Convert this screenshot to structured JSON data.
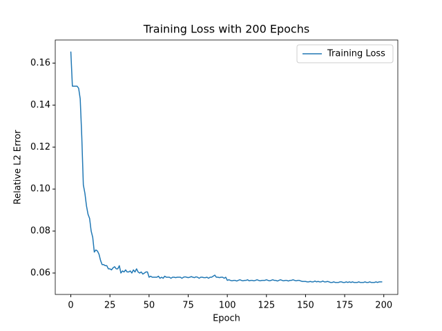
{
  "chart_data": {
    "type": "line",
    "title": "Training Loss with 200 Epochs",
    "x_label": "Epoch",
    "y_label": "Relative L2 Error",
    "x": [
      0,
      1,
      2,
      3,
      4,
      5,
      6,
      7,
      8,
      9,
      10,
      11,
      12,
      13,
      14,
      15,
      16,
      17,
      18,
      19,
      20,
      21,
      22,
      23,
      24,
      25,
      26,
      27,
      28,
      29,
      30,
      31,
      32,
      33,
      34,
      35,
      36,
      37,
      38,
      39,
      40,
      41,
      42,
      43,
      44,
      45,
      46,
      47,
      48,
      49,
      50,
      51,
      52,
      53,
      54,
      55,
      56,
      57,
      58,
      59,
      60,
      61,
      62,
      63,
      64,
      65,
      66,
      67,
      68,
      69,
      70,
      71,
      72,
      73,
      74,
      75,
      76,
      77,
      78,
      79,
      80,
      81,
      82,
      83,
      84,
      85,
      86,
      87,
      88,
      89,
      90,
      91,
      92,
      93,
      94,
      95,
      96,
      97,
      98,
      99,
      100,
      101,
      102,
      103,
      104,
      105,
      106,
      107,
      108,
      109,
      110,
      111,
      112,
      113,
      114,
      115,
      116,
      117,
      118,
      119,
      120,
      121,
      122,
      123,
      124,
      125,
      126,
      127,
      128,
      129,
      130,
      131,
      132,
      133,
      134,
      135,
      136,
      137,
      138,
      139,
      140,
      141,
      142,
      143,
      144,
      145,
      146,
      147,
      148,
      149,
      150,
      151,
      152,
      153,
      154,
      155,
      156,
      157,
      158,
      159,
      160,
      161,
      162,
      163,
      164,
      165,
      166,
      167,
      168,
      169,
      170,
      171,
      172,
      173,
      174,
      175,
      176,
      177,
      178,
      179,
      180,
      181,
      182,
      183,
      184,
      185,
      186,
      187,
      188,
      189,
      190,
      191,
      192,
      193,
      194,
      195,
      196,
      197,
      198,
      199
    ],
    "series": [
      {
        "name": "Training Loss",
        "color": "#1f77b4",
        "values": [
          0.1655,
          0.149,
          0.149,
          0.149,
          0.149,
          0.148,
          0.143,
          0.125,
          0.102,
          0.098,
          0.092,
          0.088,
          0.086,
          0.08,
          0.077,
          0.07,
          0.071,
          0.0705,
          0.069,
          0.066,
          0.064,
          0.064,
          0.0635,
          0.0635,
          0.062,
          0.062,
          0.0615,
          0.0625,
          0.063,
          0.062,
          0.062,
          0.0635,
          0.06,
          0.061,
          0.0605,
          0.0615,
          0.0605,
          0.0605,
          0.061,
          0.06,
          0.0615,
          0.0605,
          0.062,
          0.0605,
          0.06,
          0.0605,
          0.0595,
          0.06,
          0.0605,
          0.0605,
          0.058,
          0.0585,
          0.058,
          0.058,
          0.058,
          0.058,
          0.0585,
          0.0575,
          0.058,
          0.0575,
          0.0585,
          0.058,
          0.058,
          0.058,
          0.0575,
          0.058,
          0.058,
          0.0578,
          0.058,
          0.058,
          0.058,
          0.0575,
          0.058,
          0.0582,
          0.058,
          0.0578,
          0.058,
          0.0583,
          0.058,
          0.0578,
          0.0582,
          0.058,
          0.0575,
          0.058,
          0.058,
          0.0578,
          0.0578,
          0.058,
          0.0575,
          0.058,
          0.058,
          0.0585,
          0.059,
          0.058,
          0.058,
          0.0578,
          0.058,
          0.058,
          0.0575,
          0.058,
          0.0565,
          0.0568,
          0.0565,
          0.0563,
          0.0565,
          0.0565,
          0.0562,
          0.0565,
          0.0568,
          0.0565,
          0.0563,
          0.0565,
          0.0565,
          0.0568,
          0.0563,
          0.0565,
          0.0565,
          0.0563,
          0.0565,
          0.0568,
          0.0565,
          0.0563,
          0.0565,
          0.0565,
          0.0565,
          0.0568,
          0.0565,
          0.0563,
          0.0565,
          0.0568,
          0.0565,
          0.0565,
          0.0562,
          0.0565,
          0.0568,
          0.0565,
          0.0563,
          0.0565,
          0.0565,
          0.0562,
          0.0565,
          0.0565,
          0.0568,
          0.0565,
          0.0563,
          0.0565,
          0.0565,
          0.0562,
          0.056,
          0.056,
          0.056,
          0.0558,
          0.0558,
          0.056,
          0.0558,
          0.0558,
          0.0562,
          0.0558,
          0.056,
          0.0558,
          0.0558,
          0.0562,
          0.0558,
          0.0558,
          0.056,
          0.0558,
          0.0555,
          0.0555,
          0.0558,
          0.0555,
          0.0555,
          0.0555,
          0.0558,
          0.0558,
          0.0555,
          0.0555,
          0.0558,
          0.0555,
          0.0558,
          0.0555,
          0.0558,
          0.0555,
          0.0555,
          0.0555,
          0.0558,
          0.0555,
          0.0555,
          0.0555,
          0.0558,
          0.0555,
          0.0555,
          0.0558,
          0.0555,
          0.0555,
          0.0555,
          0.0558,
          0.0555,
          0.0558,
          0.0558,
          0.0558
        ]
      }
    ],
    "xlim": [
      -9.95,
      208.95
    ],
    "ylim": [
      0.0498,
      0.171
    ],
    "xticks": [
      0,
      25,
      50,
      75,
      100,
      125,
      150,
      175,
      200
    ],
    "yticks": [
      0.06,
      0.08,
      {
        "value": 0.1,
        "label": "0.10"
      },
      0.12,
      0.14,
      0.16
    ],
    "legend": "upper right"
  }
}
